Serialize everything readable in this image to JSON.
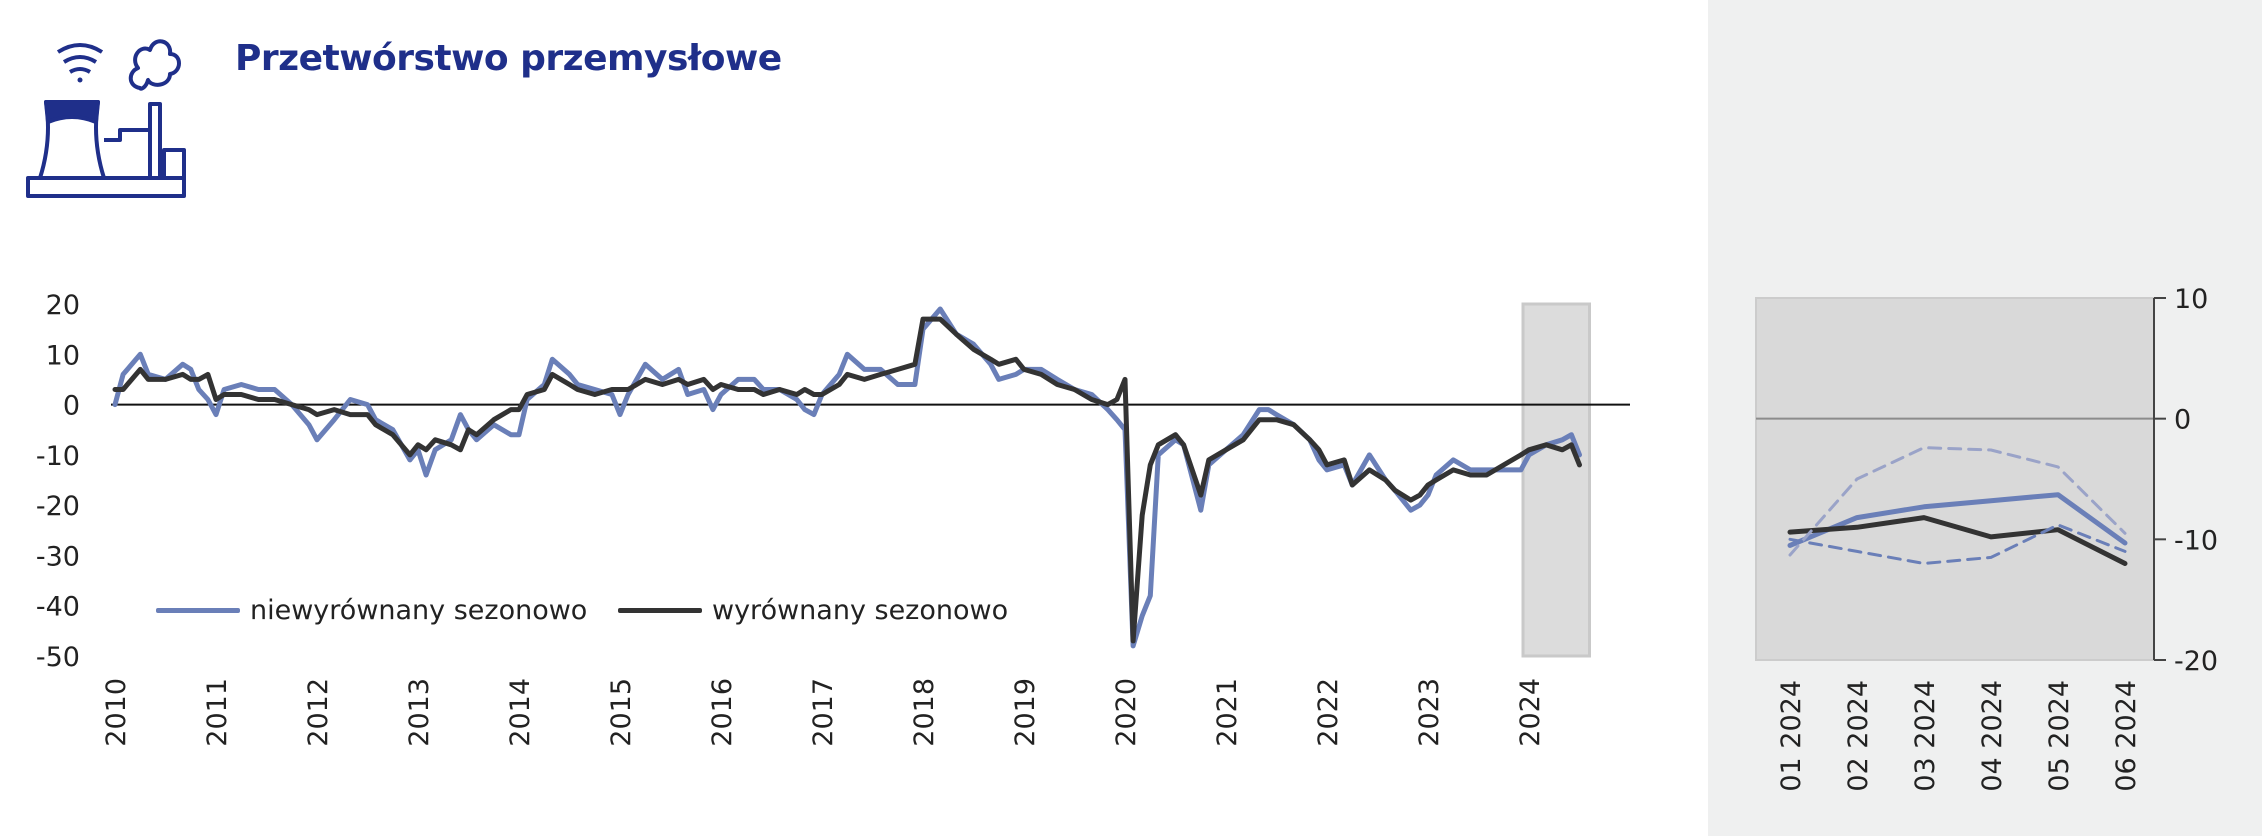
{
  "header": {
    "title": "Przetwórstwo przemysłowe",
    "icon": "factory-icon"
  },
  "legend": {
    "items": [
      {
        "label": "niewyrównany sezonowo",
        "color": "#6a7fb8"
      },
      {
        "label": "wyrównany sezonowo",
        "color": "#333333"
      }
    ]
  },
  "chart_data": [
    {
      "type": "line",
      "x_ticks": [
        "2010",
        "2011",
        "2012",
        "2013",
        "2014",
        "2015",
        "2016",
        "2017",
        "2018",
        "2019",
        "2020",
        "2021",
        "2022",
        "2023",
        "2024"
      ],
      "y_ticks": [
        20,
        10,
        0,
        -10,
        -20,
        -30,
        -40,
        -50
      ],
      "ylim": [
        -50,
        20
      ],
      "xlim": [
        2010.0,
        2025.0
      ],
      "highlight_range": [
        2024.0,
        2024.5
      ],
      "series": [
        {
          "name": "niewyrównany sezonowo",
          "color": "#6a7fb8",
          "points": [
            [
              2010.0,
              0
            ],
            [
              2010.08,
              6
            ],
            [
              2010.25,
              10
            ],
            [
              2010.33,
              6
            ],
            [
              2010.5,
              5
            ],
            [
              2010.67,
              8
            ],
            [
              2010.75,
              7
            ],
            [
              2010.83,
              3
            ],
            [
              2010.92,
              1
            ],
            [
              2011.0,
              -2
            ],
            [
              2011.08,
              3
            ],
            [
              2011.25,
              4
            ],
            [
              2011.42,
              3
            ],
            [
              2011.58,
              3
            ],
            [
              2011.75,
              0
            ],
            [
              2011.92,
              -4
            ],
            [
              2012.0,
              -7
            ],
            [
              2012.17,
              -3
            ],
            [
              2012.33,
              1
            ],
            [
              2012.5,
              0
            ],
            [
              2012.58,
              -3
            ],
            [
              2012.75,
              -5
            ],
            [
              2012.92,
              -11
            ],
            [
              2013.0,
              -9
            ],
            [
              2013.08,
              -14
            ],
            [
              2013.17,
              -9
            ],
            [
              2013.33,
              -7
            ],
            [
              2013.42,
              -2
            ],
            [
              2013.5,
              -5
            ],
            [
              2013.58,
              -7
            ],
            [
              2013.75,
              -4
            ],
            [
              2013.92,
              -6
            ],
            [
              2014.0,
              -6
            ],
            [
              2014.08,
              1
            ],
            [
              2014.25,
              4
            ],
            [
              2014.33,
              9
            ],
            [
              2014.5,
              6
            ],
            [
              2014.58,
              4
            ],
            [
              2014.75,
              3
            ],
            [
              2014.92,
              2
            ],
            [
              2015.0,
              -2
            ],
            [
              2015.08,
              2
            ],
            [
              2015.25,
              8
            ],
            [
              2015.42,
              5
            ],
            [
              2015.58,
              7
            ],
            [
              2015.67,
              2
            ],
            [
              2015.83,
              3
            ],
            [
              2015.92,
              -1
            ],
            [
              2016.0,
              2
            ],
            [
              2016.17,
              5
            ],
            [
              2016.33,
              5
            ],
            [
              2016.42,
              3
            ],
            [
              2016.58,
              3
            ],
            [
              2016.75,
              1
            ],
            [
              2016.83,
              -1
            ],
            [
              2016.92,
              -2
            ],
            [
              2017.0,
              2
            ],
            [
              2017.17,
              6
            ],
            [
              2017.25,
              10
            ],
            [
              2017.42,
              7
            ],
            [
              2017.58,
              7
            ],
            [
              2017.75,
              4
            ],
            [
              2017.92,
              4
            ],
            [
              2018.0,
              15
            ],
            [
              2018.17,
              19
            ],
            [
              2018.33,
              14
            ],
            [
              2018.5,
              12
            ],
            [
              2018.67,
              8
            ],
            [
              2018.75,
              5
            ],
            [
              2018.92,
              6
            ],
            [
              2019.0,
              7
            ],
            [
              2019.17,
              7
            ],
            [
              2019.33,
              5
            ],
            [
              2019.5,
              3
            ],
            [
              2019.67,
              2
            ],
            [
              2019.83,
              -1
            ],
            [
              2019.92,
              -3
            ],
            [
              2020.0,
              -5
            ],
            [
              2020.08,
              -48
            ],
            [
              2020.17,
              -42
            ],
            [
              2020.25,
              -38
            ],
            [
              2020.33,
              -10
            ],
            [
              2020.5,
              -7
            ],
            [
              2020.58,
              -8
            ],
            [
              2020.75,
              -21
            ],
            [
              2020.83,
              -12
            ],
            [
              2021.0,
              -9
            ],
            [
              2021.17,
              -6
            ],
            [
              2021.33,
              -1
            ],
            [
              2021.42,
              -1
            ],
            [
              2021.5,
              -2
            ],
            [
              2021.67,
              -4
            ],
            [
              2021.83,
              -7
            ],
            [
              2021.92,
              -11
            ],
            [
              2022.0,
              -13
            ],
            [
              2022.17,
              -12
            ],
            [
              2022.25,
              -16
            ],
            [
              2022.42,
              -10
            ],
            [
              2022.58,
              -15
            ],
            [
              2022.67,
              -17
            ],
            [
              2022.83,
              -21
            ],
            [
              2022.92,
              -20
            ],
            [
              2023.0,
              -18
            ],
            [
              2023.08,
              -14
            ],
            [
              2023.25,
              -11
            ],
            [
              2023.42,
              -13
            ],
            [
              2023.58,
              -13
            ],
            [
              2023.75,
              -13
            ],
            [
              2023.92,
              -13
            ],
            [
              2024.0,
              -10
            ],
            [
              2024.17,
              -8
            ],
            [
              2024.33,
              -7
            ],
            [
              2024.42,
              -6
            ],
            [
              2024.5,
              -10
            ]
          ]
        },
        {
          "name": "wyrównany sezonowo",
          "color": "#333333",
          "points": [
            [
              2010.0,
              3
            ],
            [
              2010.08,
              3
            ],
            [
              2010.25,
              7
            ],
            [
              2010.33,
              5
            ],
            [
              2010.5,
              5
            ],
            [
              2010.67,
              6
            ],
            [
              2010.75,
              5
            ],
            [
              2010.83,
              5
            ],
            [
              2010.92,
              6
            ],
            [
              2011.0,
              1
            ],
            [
              2011.08,
              2
            ],
            [
              2011.25,
              2
            ],
            [
              2011.42,
              1
            ],
            [
              2011.58,
              1
            ],
            [
              2011.75,
              0
            ],
            [
              2011.92,
              -1
            ],
            [
              2012.0,
              -2
            ],
            [
              2012.17,
              -1
            ],
            [
              2012.33,
              -2
            ],
            [
              2012.5,
              -2
            ],
            [
              2012.58,
              -4
            ],
            [
              2012.75,
              -6
            ],
            [
              2012.92,
              -10
            ],
            [
              2013.0,
              -8
            ],
            [
              2013.08,
              -9
            ],
            [
              2013.17,
              -7
            ],
            [
              2013.33,
              -8
            ],
            [
              2013.42,
              -9
            ],
            [
              2013.5,
              -5
            ],
            [
              2013.58,
              -6
            ],
            [
              2013.75,
              -3
            ],
            [
              2013.92,
              -1
            ],
            [
              2014.0,
              -1
            ],
            [
              2014.08,
              2
            ],
            [
              2014.25,
              3
            ],
            [
              2014.33,
              6
            ],
            [
              2014.5,
              4
            ],
            [
              2014.58,
              3
            ],
            [
              2014.75,
              2
            ],
            [
              2014.92,
              3
            ],
            [
              2015.0,
              3
            ],
            [
              2015.08,
              3
            ],
            [
              2015.25,
              5
            ],
            [
              2015.42,
              4
            ],
            [
              2015.58,
              5
            ],
            [
              2015.67,
              4
            ],
            [
              2015.83,
              5
            ],
            [
              2015.92,
              3
            ],
            [
              2016.0,
              4
            ],
            [
              2016.17,
              3
            ],
            [
              2016.33,
              3
            ],
            [
              2016.42,
              2
            ],
            [
              2016.58,
              3
            ],
            [
              2016.75,
              2
            ],
            [
              2016.83,
              3
            ],
            [
              2016.92,
              2
            ],
            [
              2017.0,
              2
            ],
            [
              2017.17,
              4
            ],
            [
              2017.25,
              6
            ],
            [
              2017.42,
              5
            ],
            [
              2017.58,
              6
            ],
            [
              2017.75,
              7
            ],
            [
              2017.92,
              8
            ],
            [
              2018.0,
              17
            ],
            [
              2018.17,
              17
            ],
            [
              2018.33,
              14
            ],
            [
              2018.5,
              11
            ],
            [
              2018.67,
              9
            ],
            [
              2018.75,
              8
            ],
            [
              2018.92,
              9
            ],
            [
              2019.0,
              7
            ],
            [
              2019.17,
              6
            ],
            [
              2019.33,
              4
            ],
            [
              2019.5,
              3
            ],
            [
              2019.67,
              1
            ],
            [
              2019.83,
              0
            ],
            [
              2019.92,
              1
            ],
            [
              2020.0,
              5
            ],
            [
              2020.08,
              -47
            ],
            [
              2020.17,
              -22
            ],
            [
              2020.25,
              -12
            ],
            [
              2020.33,
              -8
            ],
            [
              2020.5,
              -6
            ],
            [
              2020.58,
              -8
            ],
            [
              2020.75,
              -18
            ],
            [
              2020.83,
              -11
            ],
            [
              2021.0,
              -9
            ],
            [
              2021.17,
              -7
            ],
            [
              2021.33,
              -3
            ],
            [
              2021.42,
              -3
            ],
            [
              2021.5,
              -3
            ],
            [
              2021.67,
              -4
            ],
            [
              2021.83,
              -7
            ],
            [
              2021.92,
              -9
            ],
            [
              2022.0,
              -12
            ],
            [
              2022.17,
              -11
            ],
            [
              2022.25,
              -16
            ],
            [
              2022.42,
              -13
            ],
            [
              2022.58,
              -15
            ],
            [
              2022.67,
              -17
            ],
            [
              2022.83,
              -19
            ],
            [
              2022.92,
              -18
            ],
            [
              2023.0,
              -16
            ],
            [
              2023.08,
              -15
            ],
            [
              2023.25,
              -13
            ],
            [
              2023.42,
              -14
            ],
            [
              2023.58,
              -14
            ],
            [
              2023.75,
              -12
            ],
            [
              2023.92,
              -10
            ],
            [
              2024.0,
              -9
            ],
            [
              2024.17,
              -8
            ],
            [
              2024.33,
              -9
            ],
            [
              2024.42,
              -8
            ],
            [
              2024.5,
              -12
            ]
          ]
        }
      ]
    },
    {
      "type": "line",
      "categories": [
        "01 2024",
        "02 2024",
        "03 2024",
        "04 2024",
        "05 2024",
        "06 2024"
      ],
      "y_ticks": [
        10,
        0,
        -10,
        -20
      ],
      "ylim": [
        -20,
        10
      ],
      "y_axis_side": "right",
      "series": [
        {
          "color": "#6a7fb8",
          "style": "solid",
          "values": [
            -10.5,
            -8.2,
            -7.3,
            -6.8,
            -6.3,
            -10.3
          ]
        },
        {
          "color": "#333333",
          "style": "solid",
          "values": [
            -9.4,
            -9.0,
            -8.2,
            -9.8,
            -9.2,
            -12
          ]
        },
        {
          "color": "#9aa3c8",
          "style": "dashed",
          "values": [
            -11.3,
            -5.0,
            -2.4,
            -2.6,
            -4.0,
            -9.5
          ]
        },
        {
          "color": "#6a7fb8",
          "style": "dashed",
          "values": [
            -10.0,
            -11.0,
            -12.0,
            -11.5,
            -8.8,
            -11.0
          ]
        }
      ]
    }
  ]
}
